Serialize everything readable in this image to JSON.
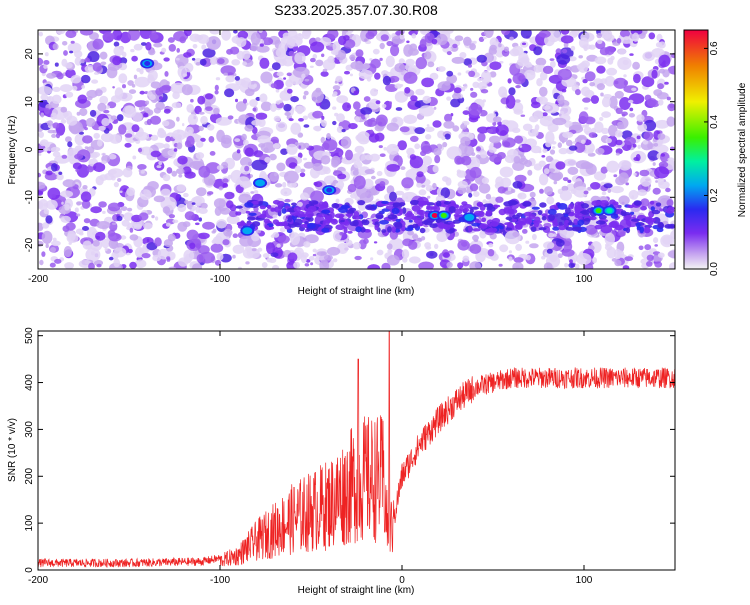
{
  "title": "S233.2025.357.07.30.R08",
  "chart_data": [
    {
      "type": "heatmap",
      "xlabel": "Height of straight line (km)",
      "ylabel": "Frequency (Hz)",
      "xlim": [
        -200,
        150
      ],
      "ylim": [
        -25,
        25
      ],
      "xticks": [
        -200,
        -100,
        0,
        100
      ],
      "yticks": [
        -20,
        -10,
        0,
        10,
        20
      ],
      "colorbar": {
        "label": "Normalized spectral amplitude",
        "range": [
          0,
          0.65
        ],
        "ticks": [
          0.0,
          0.2,
          0.4,
          0.6
        ],
        "colors": [
          "#f2f2f2",
          "#c8a8f0",
          "#7a2cf0",
          "#2a2af0",
          "#00a8f0",
          "#00f0a0",
          "#3af000",
          "#f0f000",
          "#f08000",
          "#f00040"
        ]
      },
      "features": [
        {
          "x": 18,
          "y": -13.8,
          "amplitude": 0.62
        },
        {
          "x": 23,
          "y": -13.8,
          "amplitude": 0.32
        },
        {
          "x": 108,
          "y": -12.8,
          "amplitude": 0.3
        },
        {
          "x": 114,
          "y": -12.8,
          "amplitude": 0.28
        },
        {
          "x": 37,
          "y": -14.2,
          "amplitude": 0.2
        },
        {
          "x": -78,
          "y": -7,
          "amplitude": 0.2
        },
        {
          "x": -85,
          "y": -17,
          "amplitude": 0.18
        },
        {
          "x": -40,
          "y": -8.5,
          "amplitude": 0.15
        },
        {
          "x": -140,
          "y": 18,
          "amplitude": 0.15
        }
      ]
    },
    {
      "type": "line",
      "xlabel": "Height of straight line (km)",
      "ylabel": "SNR (10 * v/v)",
      "xlim": [
        -200,
        150
      ],
      "ylim": [
        0,
        510
      ],
      "xticks": [
        -200,
        -100,
        0,
        100
      ],
      "yticks": [
        0,
        100,
        200,
        300,
        400,
        500
      ],
      "color": "#ee2222",
      "series": [
        {
          "x": [
            -200,
            -150,
            -110,
            -100,
            -90,
            -80,
            -70,
            -60,
            -50,
            -40,
            -30,
            -25,
            -20,
            -15,
            -10,
            -7,
            -6,
            -5,
            0,
            10,
            20,
            30,
            40,
            50,
            60,
            80,
            100,
            120,
            150
          ],
          "y": [
            15,
            15,
            18,
            25,
            40,
            80,
            110,
            140,
            160,
            180,
            220,
            240,
            250,
            250,
            250,
            40,
            500,
            100,
            200,
            270,
            320,
            360,
            390,
            400,
            410,
            410,
            410,
            410,
            410
          ]
        }
      ],
      "spikes": [
        {
          "x": -24,
          "y": 450
        },
        {
          "x": -7,
          "y": 510
        }
      ]
    }
  ]
}
